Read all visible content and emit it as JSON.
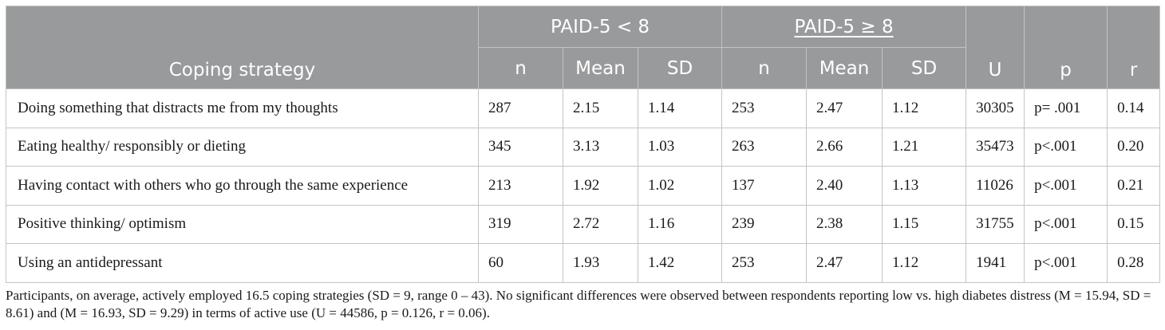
{
  "table": {
    "header": {
      "coping_strategy": "Coping strategy",
      "group_low": "PAID-5 < 8",
      "group_high": "PAID-5 ≥ 8",
      "n": "n",
      "mean": "Mean",
      "sd": "SD",
      "u": "U",
      "p": "p",
      "r": "r"
    },
    "rows": [
      {
        "strategy": "Doing something that distracts me from my thoughts",
        "low_n": "287",
        "low_mean": "2.15",
        "low_sd": "1.14",
        "high_n": "253",
        "high_mean": "2.47",
        "high_sd": "1.12",
        "u": "30305",
        "p": "p= .001",
        "r": "0.14"
      },
      {
        "strategy": "Eating healthy/ responsibly or dieting",
        "low_n": "345",
        "low_mean": "3.13",
        "low_sd": "1.03",
        "high_n": "263",
        "high_mean": "2.66",
        "high_sd": "1.21",
        "u": "35473",
        "p": "p<.001",
        "r": "0.20"
      },
      {
        "strategy": "Having contact with others who go through the same experience",
        "low_n": "213",
        "low_mean": "1.92",
        "low_sd": "1.02",
        "high_n": "137",
        "high_mean": "2.40",
        "high_sd": "1.13",
        "u": "11026",
        "p": "p<.001",
        "r": "0.21"
      },
      {
        "strategy": "Positive thinking/ optimism",
        "low_n": "319",
        "low_mean": "2.72",
        "low_sd": "1.16",
        "high_n": "239",
        "high_mean": "2.38",
        "high_sd": "1.15",
        "u": "31755",
        "p": "p<.001",
        "r": "0.15"
      },
      {
        "strategy": "Using an antidepressant",
        "low_n": "60",
        "low_mean": "1.93",
        "low_sd": "1.42",
        "high_n": "253",
        "high_mean": "2.47",
        "high_sd": "1.12",
        "u": "1941",
        "p": "p<.001",
        "r": "0.28"
      }
    ]
  },
  "footnote": "Participants, on average, actively employed 16.5 coping strategies (SD = 9, range 0 – 43). No significant differences were observed between respondents reporting low vs. high diabetes distress (M = 15.94, SD = 8.61) and (M = 16.93, SD = 9.29) in terms of active use (U = 44586, p = 0.126, r = 0.06).",
  "colors": {
    "header_bg": "#999a9c",
    "header_text": "#ffffff",
    "border": "#c4c4c4"
  }
}
